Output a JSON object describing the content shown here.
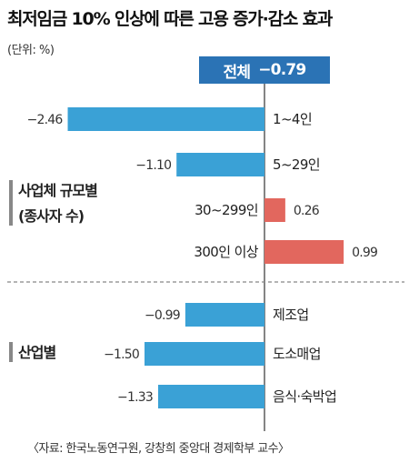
{
  "header": {
    "title": "최저임금 10% 인상에 따른 고용 증가·감소 효과",
    "unit": "(단위: %)"
  },
  "total": {
    "label": "전체",
    "value_text": "−0.79"
  },
  "groups": [
    {
      "label_line1": "사업체 규모별",
      "label_line2": "(종사자 수)"
    },
    {
      "label_line1": "산업별",
      "label_line2": ""
    }
  ],
  "source": "〈자료: 한국노동연구원, 강창희 중앙대 경제학부 교수〉",
  "chart_data": {
    "type": "bar",
    "orientation": "horizontal",
    "title": "최저임금 10% 인상에 따른 고용 증가·감소 효과",
    "unit": "%",
    "total": {
      "name": "전체",
      "value": -0.79
    },
    "categories": [
      "1~4인",
      "5~29인",
      "30~299인",
      "300인 이상",
      "제조업",
      "도소매업",
      "음식·숙박업"
    ],
    "values": [
      -2.46,
      -1.1,
      0.26,
      0.99,
      -0.99,
      -1.5,
      -1.33
    ],
    "value_labels": [
      "−2.46",
      "−1.10",
      "0.26",
      "0.99",
      "−0.99",
      "−1.50",
      "−1.33"
    ],
    "group_of": [
      0,
      0,
      0,
      0,
      1,
      1,
      1
    ],
    "colors": {
      "negative": "#3aa1d6",
      "positive": "#e2675e",
      "total_box": "#2b73b5"
    },
    "grid": false,
    "legend": "none"
  }
}
